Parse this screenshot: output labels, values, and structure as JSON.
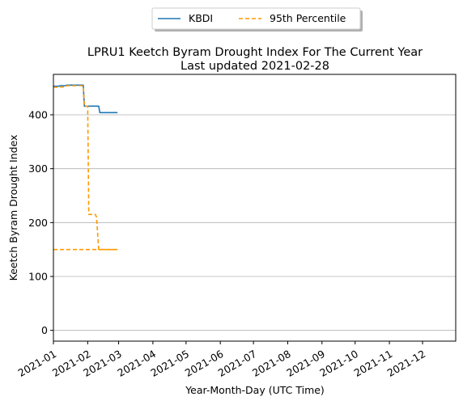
{
  "chart_data": {
    "type": "line",
    "title_line1": "LPRU1 Keetch Byram Drought Index For The Current Year",
    "title_line2": "Last updated 2021-02-28",
    "xlabel": "Year-Month-Day (UTC Time)",
    "ylabel": "Keetch Byram Drought Index",
    "x_range": [
      "2021-01-01",
      "2021-12-31"
    ],
    "ylim": [
      -20,
      475
    ],
    "x_ticks": [
      "2021-01",
      "2021-02",
      "2021-03",
      "2021-04",
      "2021-05",
      "2021-06",
      "2021-07",
      "2021-08",
      "2021-09",
      "2021-10",
      "2021-11",
      "2021-12"
    ],
    "y_ticks": [
      0,
      100,
      200,
      300,
      400
    ],
    "grid": "horizontal",
    "legend_position": "top-center",
    "series": [
      {
        "name": "KBDI",
        "color": "#1f77b4",
        "style": "solid",
        "points": [
          [
            "2021-01-01",
            453
          ],
          [
            "2021-01-06",
            453
          ],
          [
            "2021-01-07",
            454
          ],
          [
            "2021-01-12",
            454
          ],
          [
            "2021-01-13",
            455
          ],
          [
            "2021-01-28",
            455
          ],
          [
            "2021-01-29",
            416
          ],
          [
            "2021-02-11",
            416
          ],
          [
            "2021-02-12",
            404
          ],
          [
            "2021-02-28",
            404
          ]
        ]
      },
      {
        "name": "95th Percentile",
        "color": "#ff9900",
        "style": "dashed",
        "points": [
          [
            "2021-01-01",
            451
          ],
          [
            "2021-01-12",
            452
          ],
          [
            "2021-01-13",
            454
          ],
          [
            "2021-01-28",
            454
          ],
          [
            "2021-01-29",
            416
          ],
          [
            "2021-02-01",
            416
          ],
          [
            "2021-02-02",
            215
          ],
          [
            "2021-02-08",
            215
          ],
          [
            "2021-02-09",
            210
          ],
          [
            "2021-02-11",
            150
          ],
          [
            "2021-02-28",
            150
          ]
        ]
      },
      {
        "name": "",
        "color": "#ff9900",
        "style": "dashed",
        "points": [
          [
            "2021-01-01",
            150
          ],
          [
            "2021-02-28",
            150
          ]
        ]
      }
    ]
  }
}
